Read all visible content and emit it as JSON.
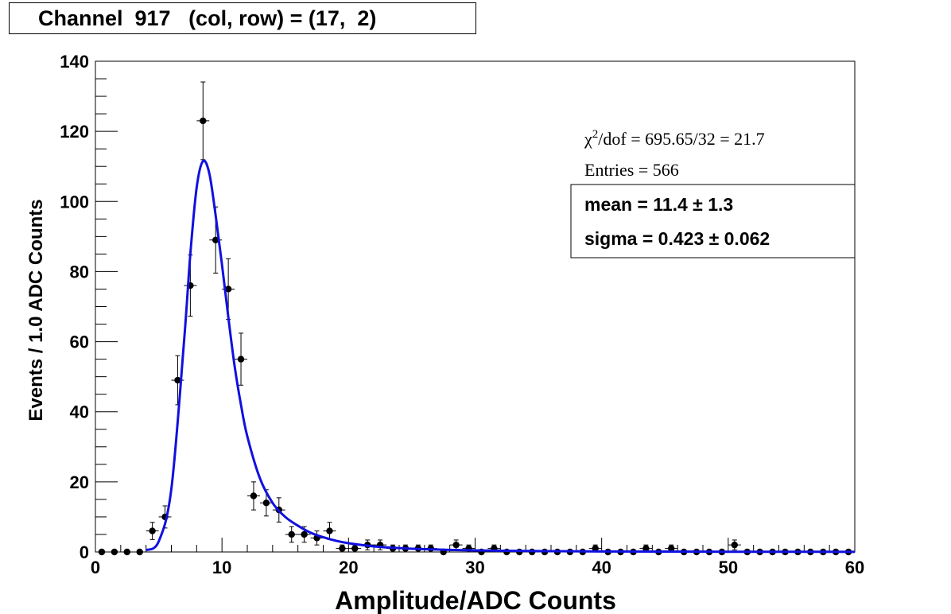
{
  "chart_data": {
    "type": "scatter",
    "title": "Channel  917   (col, row) = (17,  2)",
    "xlabel": "Amplitude/ADC Counts",
    "ylabel": "Events / 1.0 ADC Counts",
    "xlim": [
      0,
      60
    ],
    "ylim": [
      0,
      140
    ],
    "xticks": [
      "0",
      "10",
      "20",
      "30",
      "40",
      "50",
      "60"
    ],
    "yticks": [
      "0",
      "20",
      "40",
      "60",
      "80",
      "100",
      "120",
      "140"
    ],
    "stats": {
      "chi2_label": "/dof = 695.65/32 = 21.7",
      "entries_label": "Entries = 566"
    },
    "fit_params": {
      "mean_label": "mean =  11.4  ± 1.3",
      "sigma_label": "sigma =  0.423  ± 0.062"
    },
    "series": [
      {
        "type": "errorbar-points",
        "x": [
          0.5,
          1.5,
          2.5,
          3.5,
          4.5,
          5.5,
          6.5,
          7.5,
          8.5,
          9.5,
          10.5,
          11.5,
          12.5,
          13.5,
          14.5,
          15.5,
          16.5,
          17.5,
          18.5,
          19.5,
          20.5,
          21.5,
          22.5,
          23.5,
          24.5,
          25.5,
          26.5,
          27.5,
          28.5,
          29.5,
          30.5,
          31.5,
          32.5,
          33.5,
          34.5,
          35.5,
          36.5,
          37.5,
          38.5,
          39.5,
          40.5,
          41.5,
          42.5,
          43.5,
          44.5,
          45.5,
          46.5,
          47.5,
          48.5,
          49.5,
          50.5,
          51.5,
          52.5,
          53.5,
          54.5,
          55.5,
          56.5,
          57.5,
          58.5,
          59.5
        ],
        "y": [
          0,
          0,
          0,
          0,
          6,
          10,
          49,
          76,
          123,
          89,
          75,
          55,
          16,
          14,
          12,
          5,
          5,
          4,
          6,
          1,
          1,
          2,
          2,
          1,
          1,
          1,
          1,
          0,
          2,
          1,
          0,
          1,
          0,
          0,
          0,
          0,
          0,
          0,
          0,
          1,
          0,
          0,
          0,
          1,
          0,
          1,
          0,
          0,
          0,
          0,
          2,
          0,
          0,
          0,
          0,
          0,
          0,
          0,
          0,
          0
        ]
      },
      {
        "type": "fit-curve",
        "x": [
          4,
          5,
          6,
          7,
          7.5,
          8,
          8.5,
          9,
          9.5,
          10,
          10.5,
          11,
          11.5,
          12,
          13,
          14,
          15,
          16,
          17,
          18,
          19,
          20,
          22,
          24,
          26,
          28,
          30,
          35,
          40,
          45,
          50,
          55,
          60
        ],
        "y": [
          0.5,
          3,
          18,
          60,
          85,
          104,
          111.5,
          108,
          96,
          82,
          67,
          53,
          42,
          33,
          21,
          14,
          10,
          7.5,
          5.5,
          4.2,
          3.2,
          2.5,
          1.6,
          1.1,
          0.8,
          0.6,
          0.45,
          0.25,
          0.15,
          0.1,
          0.07,
          0.05,
          0.04
        ]
      }
    ],
    "colors": {
      "fit": "#1010e0",
      "points": "#000000"
    }
  }
}
